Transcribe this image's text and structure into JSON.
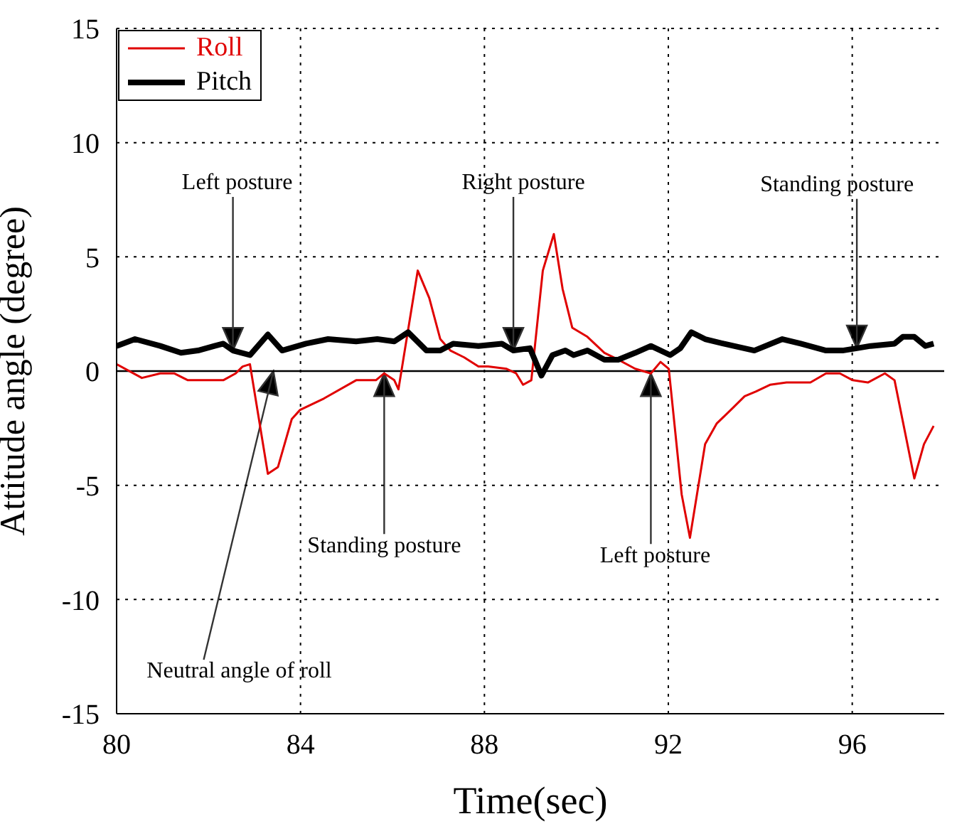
{
  "chart_data": {
    "type": "line",
    "xlabel": "Time(sec)",
    "ylabel": "Attitude angle (degree)",
    "xlim": [
      80,
      98
    ],
    "xticks": [
      80,
      84,
      88,
      92,
      96
    ],
    "ylim": [
      -15,
      15
    ],
    "yticks": [
      -15,
      -10,
      -5,
      0,
      5,
      10,
      15
    ],
    "grid": true,
    "legend": "top left",
    "marker": "none",
    "line_style": "solid",
    "ref_lines": [
      {
        "axis": "y",
        "value": 0,
        "color": "#000000"
      }
    ],
    "series": [
      {
        "name": "Roll",
        "color": "#e00000",
        "x": [
          80.0,
          80.55,
          80.95,
          81.25,
          81.55,
          81.98,
          82.32,
          82.59,
          82.74,
          82.9,
          83.29,
          83.51,
          83.81,
          83.99,
          84.51,
          85.21,
          85.64,
          85.82,
          86.04,
          86.13,
          86.55,
          86.8,
          87.04,
          87.26,
          87.56,
          87.87,
          88.08,
          88.48,
          88.69,
          88.84,
          89.02,
          89.27,
          89.51,
          89.7,
          89.91,
          90.24,
          90.61,
          90.91,
          91.28,
          91.62,
          91.83,
          92.01,
          92.29,
          92.47,
          92.8,
          93.05,
          93.41,
          93.66,
          93.9,
          94.21,
          94.57,
          95.09,
          95.43,
          95.73,
          96.01,
          96.34,
          96.71,
          96.92,
          97.35,
          97.56,
          97.77
        ],
        "values": [
          0.3,
          -0.3,
          -0.1,
          -0.1,
          -0.4,
          -0.4,
          -0.4,
          -0.1,
          0.2,
          0.3,
          -4.5,
          -4.2,
          -2.1,
          -1.7,
          -1.2,
          -0.4,
          -0.4,
          -0.1,
          -0.4,
          -0.8,
          4.4,
          3.2,
          1.4,
          0.9,
          0.6,
          0.2,
          0.2,
          0.1,
          -0.1,
          -0.6,
          -0.4,
          4.4,
          6.0,
          3.6,
          1.9,
          1.5,
          0.8,
          0.5,
          0.1,
          -0.1,
          0.4,
          0.1,
          -5.4,
          -7.3,
          -3.2,
          -2.3,
          -1.6,
          -1.1,
          -0.9,
          -0.6,
          -0.5,
          -0.5,
          -0.1,
          -0.1,
          -0.4,
          -0.5,
          -0.1,
          -0.4,
          -4.7,
          -3.2,
          -2.4
        ]
      },
      {
        "name": "Pitch",
        "color": "#000000",
        "x": [
          80.0,
          80.4,
          80.95,
          81.4,
          81.77,
          82.13,
          82.32,
          82.53,
          82.9,
          83.29,
          83.6,
          84.12,
          84.6,
          85.21,
          85.67,
          86.04,
          86.34,
          86.74,
          87.04,
          87.32,
          87.87,
          88.38,
          88.63,
          88.99,
          89.24,
          89.48,
          89.76,
          89.94,
          90.24,
          90.61,
          90.91,
          91.28,
          91.62,
          92.04,
          92.26,
          92.5,
          92.8,
          93.2,
          93.87,
          94.48,
          94.88,
          95.43,
          95.79,
          96.1,
          96.4,
          96.92,
          97.1,
          97.35,
          97.59,
          97.77
        ],
        "values": [
          1.1,
          1.4,
          1.1,
          0.8,
          0.9,
          1.1,
          1.2,
          0.9,
          0.7,
          1.6,
          0.9,
          1.2,
          1.4,
          1.3,
          1.4,
          1.3,
          1.7,
          0.9,
          0.9,
          1.2,
          1.1,
          1.2,
          0.9,
          1.0,
          -0.2,
          0.7,
          0.9,
          0.7,
          0.9,
          0.5,
          0.5,
          0.8,
          1.1,
          0.7,
          1.0,
          1.7,
          1.4,
          1.2,
          0.9,
          1.4,
          1.2,
          0.9,
          0.9,
          1.0,
          1.1,
          1.2,
          1.5,
          1.5,
          1.1,
          1.2
        ]
      }
    ],
    "annotations": [
      {
        "text": "Left posture",
        "x": 82.53,
        "y": 0.9
      },
      {
        "text": "Right posture",
        "x": 88.63,
        "y": 0.9
      },
      {
        "text": "Standing posture",
        "x": 96.1,
        "y": 1.0
      },
      {
        "text": "Standing posture",
        "x": 85.82,
        "y": -0.1
      },
      {
        "text": "Left posture",
        "x": 91.62,
        "y": -0.1
      },
      {
        "text": "Neutral angle of roll",
        "x": 83.41,
        "y": 0
      }
    ]
  }
}
